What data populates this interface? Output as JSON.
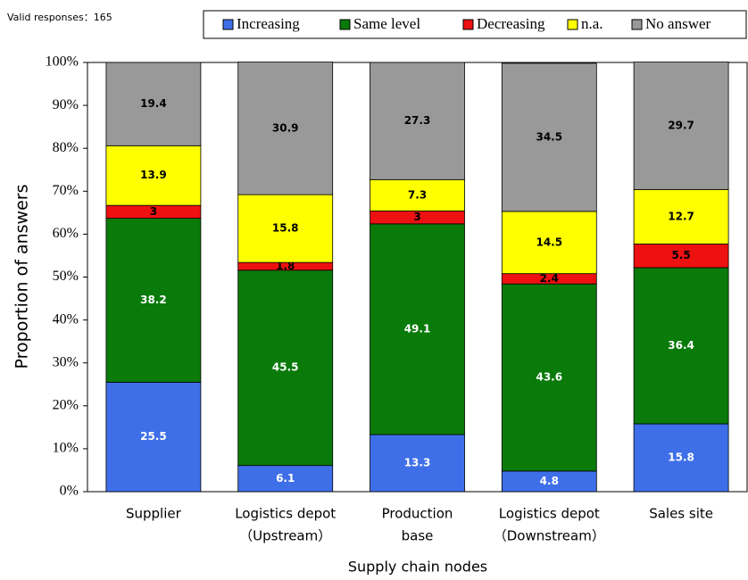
{
  "chart_data": {
    "type": "stacked_bar",
    "annotation": "Valid responses：165",
    "categories": [
      [
        "Supplier"
      ],
      [
        "Logistics depot",
        "（Upstream）"
      ],
      [
        "Production",
        "base"
      ],
      [
        "Logistics depot",
        "（Downstream）"
      ],
      [
        "Sales site"
      ]
    ],
    "series": [
      {
        "name": "Increasing",
        "color": "#3f6fe8",
        "label_color": "#ffffff",
        "values": [
          25.5,
          6.1,
          13.3,
          4.8,
          15.8
        ]
      },
      {
        "name": "Same level",
        "color": "#0a7a0a",
        "label_color": "#ffffff",
        "values": [
          38.2,
          45.5,
          49.1,
          43.6,
          36.4
        ]
      },
      {
        "name": "Decreasing",
        "color": "#ee1111",
        "label_color": "#000000",
        "values": [
          3,
          1.8,
          3,
          2.4,
          5.5
        ]
      },
      {
        "name": "n.a.",
        "color": "#ffff00",
        "label_color": "#000000",
        "values": [
          13.9,
          15.8,
          7.3,
          14.5,
          12.7
        ]
      },
      {
        "name": "No answer",
        "color": "#999999",
        "label_color": "#000000",
        "values": [
          19.4,
          30.9,
          27.3,
          34.5,
          29.7
        ]
      }
    ],
    "ylim": [
      0,
      100
    ],
    "yticks": [
      {
        "value": 0,
        "label": "0%"
      },
      {
        "value": 10,
        "label": "10%"
      },
      {
        "value": 20,
        "label": "20%"
      },
      {
        "value": 30,
        "label": "30%"
      },
      {
        "value": 40,
        "label": "40%"
      },
      {
        "value": 50,
        "label": "50%"
      },
      {
        "value": 60,
        "label": "60%"
      },
      {
        "value": 70,
        "label": "70%"
      },
      {
        "value": 80,
        "label": "80%"
      },
      {
        "value": 90,
        "label": "90%"
      },
      {
        "value": 100,
        "label": "100%"
      }
    ],
    "ylabel": "Proportion of answers",
    "xlabel": "Supply chain nodes",
    "grid": false,
    "legend": "top"
  }
}
